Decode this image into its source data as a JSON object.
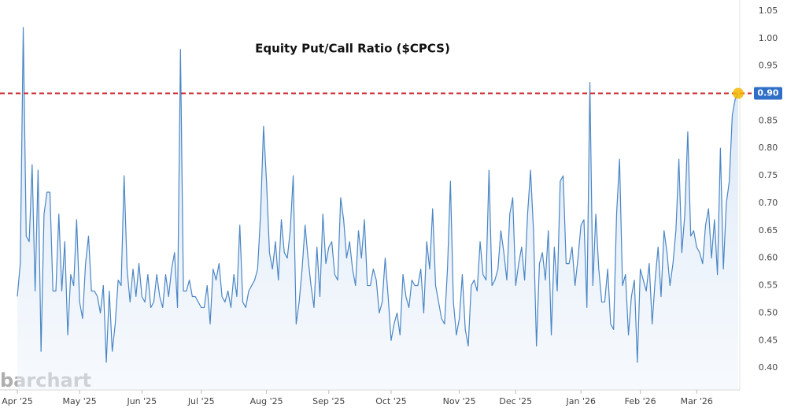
{
  "chart_data": {
    "type": "line",
    "title": "Equity Put/Call Ratio ($CPCS)",
    "watermark": "barchart",
    "categories": [
      "Apr '25",
      null,
      null,
      null,
      null,
      null,
      null,
      null,
      null,
      null,
      null,
      null,
      null,
      null,
      null,
      null,
      null,
      null,
      null,
      null,
      null,
      "May '25",
      null,
      null,
      null,
      null,
      null,
      null,
      null,
      null,
      null,
      null,
      null,
      null,
      null,
      null,
      null,
      null,
      null,
      null,
      null,
      null,
      "Jun '25",
      null,
      null,
      null,
      null,
      null,
      null,
      null,
      null,
      null,
      null,
      null,
      null,
      null,
      null,
      null,
      null,
      null,
      null,
      null,
      "Jul '25",
      null,
      null,
      null,
      null,
      null,
      null,
      null,
      null,
      null,
      null,
      null,
      null,
      null,
      null,
      null,
      null,
      null,
      null,
      null,
      null,
      null,
      "Aug '25",
      null,
      null,
      null,
      null,
      null,
      null,
      null,
      null,
      null,
      null,
      null,
      null,
      null,
      null,
      null,
      null,
      null,
      null,
      null,
      null,
      "Sep '25",
      null,
      null,
      null,
      null,
      null,
      null,
      null,
      null,
      null,
      null,
      null,
      null,
      null,
      null,
      null,
      null,
      null,
      null,
      null,
      null,
      "Oct '25",
      null,
      null,
      null,
      null,
      null,
      null,
      null,
      null,
      null,
      null,
      null,
      null,
      null,
      null,
      null,
      null,
      null,
      null,
      null,
      null,
      null,
      null,
      "Nov '25",
      null,
      null,
      null,
      null,
      null,
      null,
      null,
      null,
      null,
      null,
      null,
      null,
      null,
      null,
      null,
      null,
      null,
      null,
      "Dec '25",
      null,
      null,
      null,
      null,
      null,
      null,
      null,
      null,
      null,
      null,
      null,
      null,
      null,
      null,
      null,
      null,
      null,
      null,
      null,
      null,
      null,
      "Jan '26",
      null,
      null,
      null,
      null,
      null,
      null,
      null,
      null,
      null,
      null,
      null,
      null,
      null,
      null,
      null,
      null,
      null,
      null,
      null,
      "Feb '26",
      null,
      null,
      null,
      null,
      null,
      null,
      null,
      null,
      null,
      null,
      null,
      null,
      null,
      null,
      null,
      null,
      null,
      null,
      "Mar '26",
      null,
      null,
      null,
      null,
      null,
      null,
      null,
      null,
      null,
      null,
      null,
      null,
      null,
      null
    ],
    "series": [
      {
        "color": "#4a86c5",
        "values": [
          0.53,
          0.59,
          1.02,
          0.64,
          0.63,
          0.77,
          0.54,
          0.76,
          0.43,
          0.68,
          0.72,
          0.72,
          0.54,
          0.54,
          0.68,
          0.54,
          0.63,
          0.46,
          0.57,
          0.55,
          0.67,
          0.52,
          0.49,
          0.59,
          0.64,
          0.54,
          0.54,
          0.53,
          0.5,
          0.55,
          0.41,
          0.54,
          0.43,
          0.48,
          0.56,
          0.55,
          0.75,
          0.58,
          0.52,
          0.58,
          0.53,
          0.59,
          0.53,
          0.52,
          0.57,
          0.51,
          0.52,
          0.57,
          0.53,
          0.51,
          0.57,
          0.53,
          0.58,
          0.61,
          0.51,
          0.98,
          0.54,
          0.54,
          0.56,
          0.53,
          0.53,
          0.52,
          0.51,
          0.51,
          0.55,
          0.48,
          0.58,
          0.56,
          0.59,
          0.53,
          0.52,
          0.54,
          0.51,
          0.57,
          0.53,
          0.66,
          0.52,
          0.51,
          0.54,
          0.55,
          0.56,
          0.58,
          0.68,
          0.84,
          0.74,
          0.61,
          0.58,
          0.63,
          0.56,
          0.67,
          0.61,
          0.6,
          0.65,
          0.75,
          0.48,
          0.52,
          0.58,
          0.66,
          0.6,
          0.55,
          0.51,
          0.62,
          0.53,
          0.68,
          0.59,
          0.62,
          0.63,
          0.57,
          0.56,
          0.71,
          0.67,
          0.6,
          0.63,
          0.58,
          0.55,
          0.65,
          0.6,
          0.67,
          0.55,
          0.55,
          0.58,
          0.56,
          0.5,
          0.52,
          0.6,
          0.53,
          0.45,
          0.48,
          0.5,
          0.46,
          0.57,
          0.53,
          0.51,
          0.56,
          0.55,
          0.55,
          0.58,
          0.5,
          0.63,
          0.58,
          0.69,
          0.55,
          0.52,
          0.49,
          0.48,
          0.58,
          0.74,
          0.52,
          0.46,
          0.49,
          0.57,
          0.47,
          0.44,
          0.55,
          0.56,
          0.54,
          0.63,
          0.57,
          0.56,
          0.76,
          0.55,
          0.56,
          0.58,
          0.65,
          0.61,
          0.56,
          0.68,
          0.71,
          0.55,
          0.59,
          0.62,
          0.56,
          0.68,
          0.76,
          0.65,
          0.44,
          0.59,
          0.61,
          0.56,
          0.65,
          0.46,
          0.62,
          0.54,
          0.74,
          0.75,
          0.59,
          0.59,
          0.62,
          0.55,
          0.6,
          0.66,
          0.67,
          0.51,
          0.92,
          0.55,
          0.68,
          0.58,
          0.52,
          0.52,
          0.58,
          0.48,
          0.47,
          0.68,
          0.78,
          0.55,
          0.57,
          0.46,
          0.53,
          0.56,
          0.41,
          0.58,
          0.56,
          0.54,
          0.59,
          0.48,
          0.56,
          0.62,
          0.53,
          0.65,
          0.61,
          0.55,
          0.59,
          0.65,
          0.78,
          0.61,
          0.68,
          0.83,
          0.64,
          0.65,
          0.62,
          0.61,
          0.59,
          0.66,
          0.69,
          0.6,
          0.67,
          0.57,
          0.8,
          0.58,
          0.7,
          0.74,
          0.86,
          0.89,
          0.9
        ]
      }
    ],
    "hline": {
      "value": 0.9,
      "label": "0.90",
      "color": "#c8242c"
    },
    "marker_color": "#f5b800",
    "ylim": [
      0.36,
      1.07
    ],
    "yticks": [
      {
        "value": 0.4,
        "label": "0.40"
      },
      {
        "value": 0.45,
        "label": "0.45"
      },
      {
        "value": 0.5,
        "label": "0.50"
      },
      {
        "value": 0.55,
        "label": "0.55"
      },
      {
        "value": 0.6,
        "label": "0.60"
      },
      {
        "value": 0.65,
        "label": "0.65"
      },
      {
        "value": 0.7,
        "label": "0.70"
      },
      {
        "value": 0.75,
        "label": "0.75"
      },
      {
        "value": 0.8,
        "label": "0.80"
      },
      {
        "value": 0.85,
        "label": "0.85"
      },
      {
        "value": 0.9,
        "label": "0.90"
      },
      {
        "value": 0.95,
        "label": "0.95"
      },
      {
        "value": 1.0,
        "label": "1.00"
      },
      {
        "value": 1.05,
        "label": "1.05"
      }
    ],
    "grid": false
  }
}
